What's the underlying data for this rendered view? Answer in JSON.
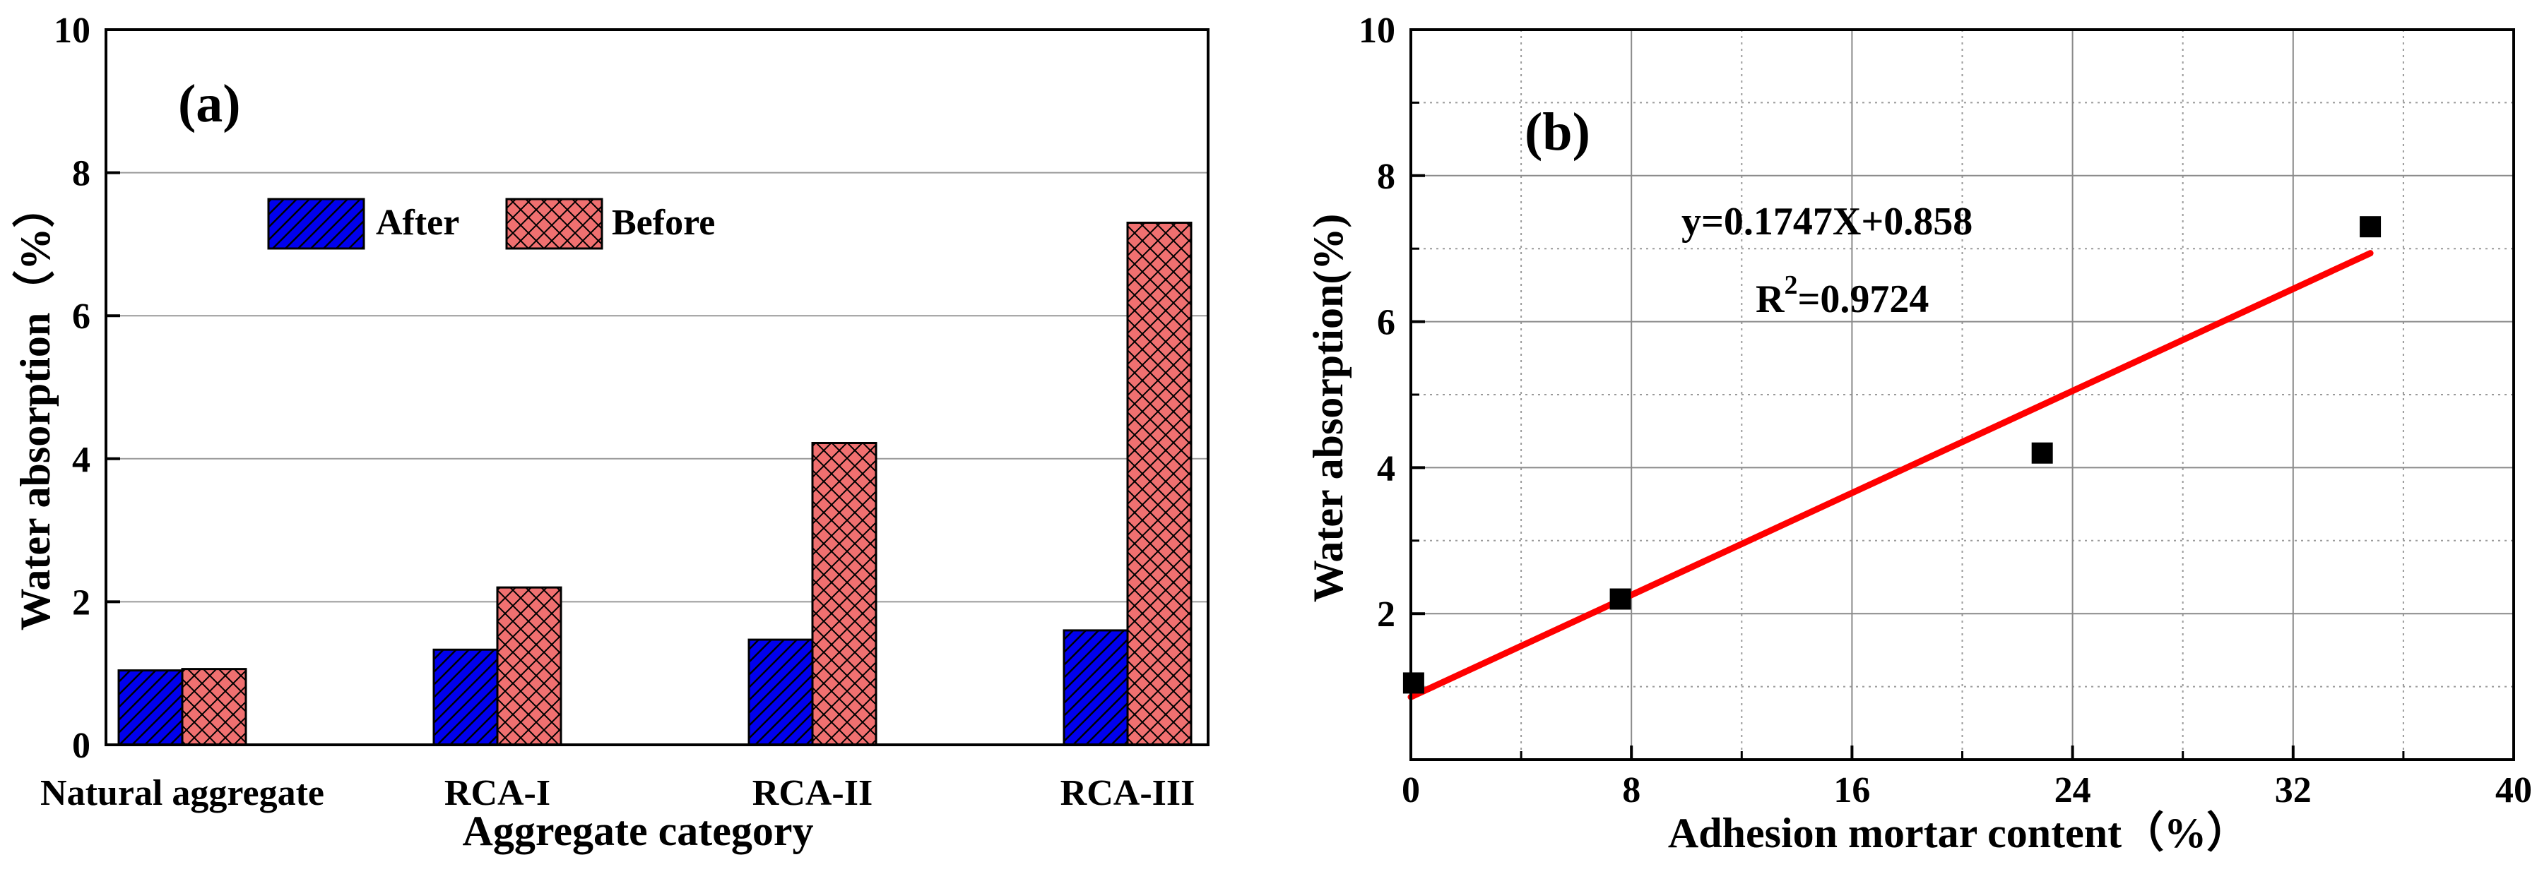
{
  "chart_data": [
    {
      "type": "bar",
      "panel_label": "(a)",
      "xlabel": "Aggregate category",
      "ylabel": "Water absorption（%）",
      "ylim": [
        0,
        10
      ],
      "yticks": [
        0,
        2,
        4,
        6,
        8,
        10
      ],
      "grid": true,
      "categories": [
        "Natural aggregate",
        "RCA-I",
        "RCA-II",
        "RCA-III"
      ],
      "series": [
        {
          "name": "After",
          "color": "#0000ee",
          "pattern": "hatch",
          "values": [
            1.04,
            1.33,
            1.47,
            1.6
          ]
        },
        {
          "name": "Before",
          "color": "#f07070",
          "pattern": "crosshatch",
          "values": [
            1.06,
            2.2,
            4.22,
            7.3
          ]
        }
      ],
      "legend_position": "top-center"
    },
    {
      "type": "scatter",
      "panel_label": "(b)",
      "xlabel": "Adhesion mortar content（%）",
      "ylabel": "Water absorption(%)",
      "xlim": [
        0,
        40
      ],
      "ylim": [
        0,
        10
      ],
      "xticks": [
        0,
        8,
        16,
        24,
        32,
        40
      ],
      "yticks": [
        2,
        4,
        6,
        8,
        10
      ],
      "grid": true,
      "points": {
        "x": [
          0.1,
          7.6,
          22.9,
          34.8
        ],
        "y": [
          1.05,
          2.2,
          4.2,
          7.3
        ]
      },
      "fit": {
        "slope": 0.1747,
        "intercept": 0.858,
        "x_range": [
          0,
          34.8
        ],
        "color": "#ff0000"
      },
      "equation_text": "y=0.1747X+0.858",
      "r2_prefix": "R",
      "r2_sup": "2",
      "r2_value": "=0.9724"
    }
  ]
}
